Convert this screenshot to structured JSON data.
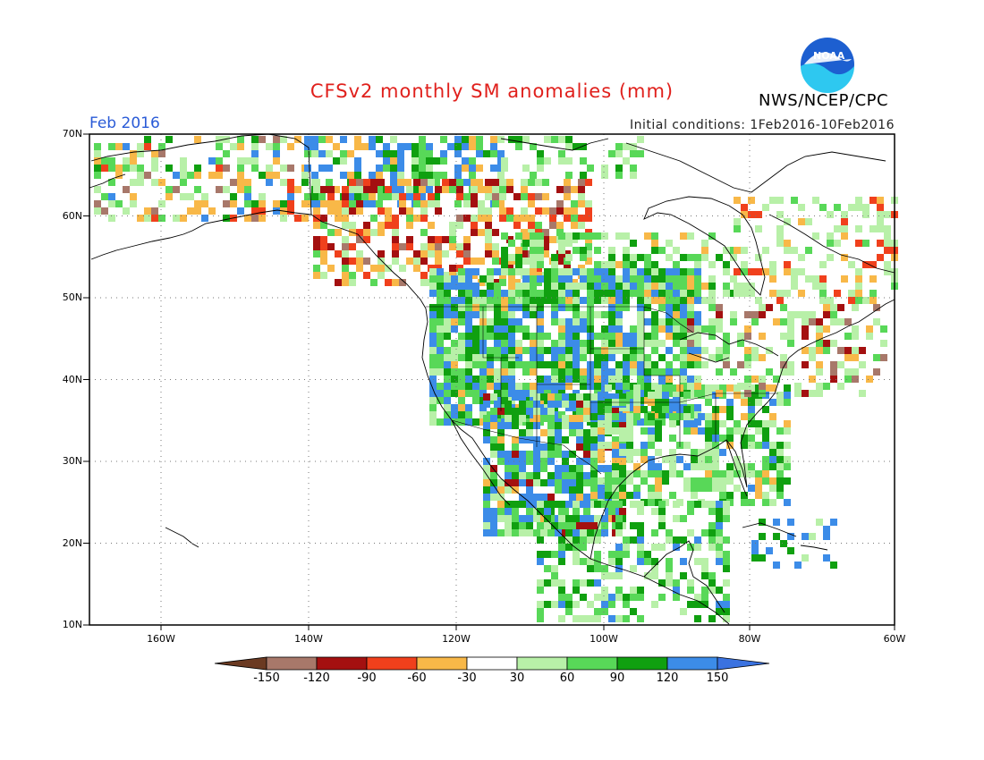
{
  "title": "CFSv2 monthly SM anomalies (mm)",
  "agency": "NWS/NCEP/CPC",
  "logo_text": "NOAA",
  "month_label": "Feb 2016",
  "initial_conditions": "Initial conditions:  1Feb2016-10Feb2016",
  "lat_labels": [
    "70N",
    "60N",
    "50N",
    "40N",
    "30N",
    "20N",
    "10N"
  ],
  "lon_labels": [
    "160W",
    "140W",
    "120W",
    "100W",
    "80W",
    "60W"
  ],
  "colorbar": {
    "ticks": [
      "-150",
      "-120",
      "-90",
      "-60",
      "-30",
      "30",
      "60",
      "90",
      "120",
      "150"
    ],
    "colors": [
      "#6b3a22",
      "#a8786a",
      "#a41010",
      "#f0401c",
      "#f8b848",
      "#ffffff",
      "#b8f0a8",
      "#58d858",
      "#10a010",
      "#3c8ce8",
      "#3a72e0"
    ]
  },
  "colors": {
    "title": "#e0201c",
    "month": "#2a5bd7",
    "logo_blue": "#1d5fd0",
    "logo_cyan": "#2ec8f0"
  }
}
